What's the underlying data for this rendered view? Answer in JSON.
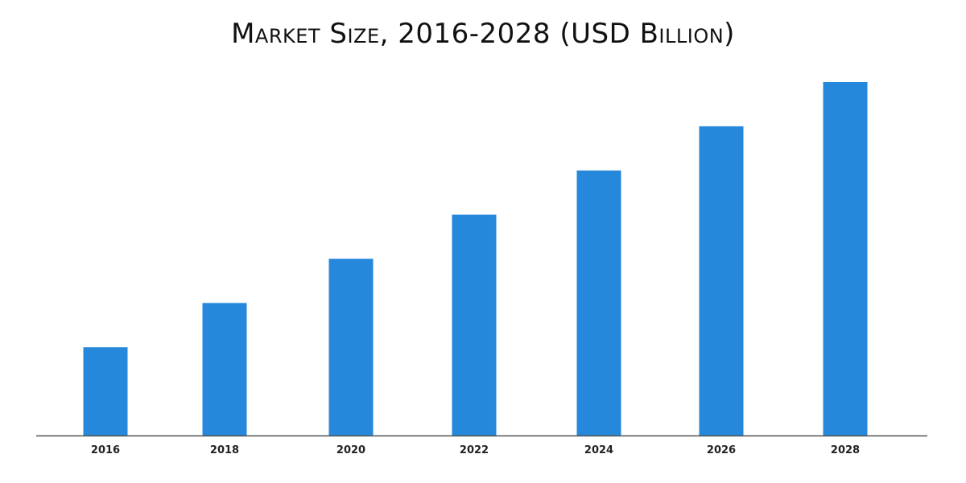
{
  "chart_data": {
    "type": "bar",
    "title": "Market Size, 2016-2028 (USD Billion)",
    "xlabel": "",
    "ylabel": "",
    "categories": [
      "2016",
      "2018",
      "2020",
      "2022",
      "2024",
      "2026",
      "2028"
    ],
    "values": [
      2,
      3,
      4,
      5,
      6,
      7,
      8
    ],
    "ylim": [
      0,
      8
    ],
    "grid": false,
    "legend": "none",
    "colors": {
      "bar": "#2588DB",
      "axis": "#555555",
      "text": "#111111"
    }
  }
}
